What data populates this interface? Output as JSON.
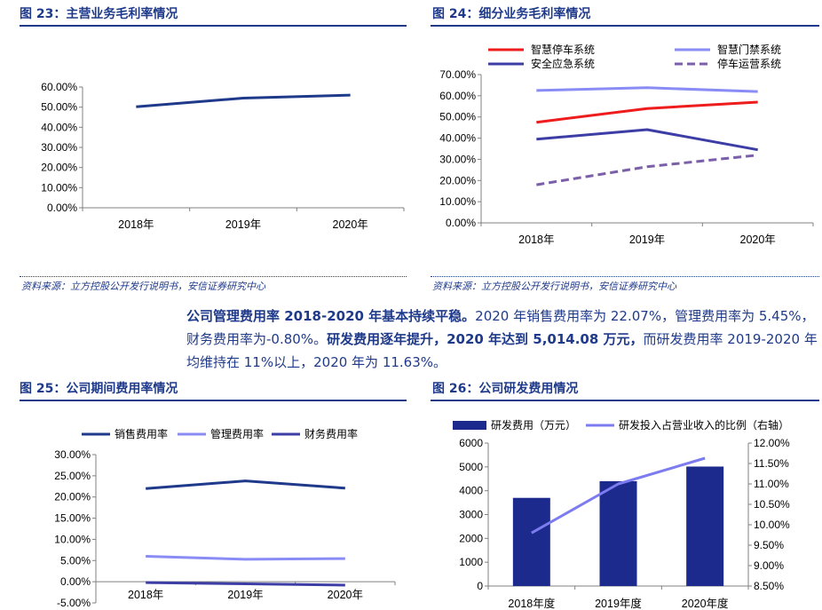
{
  "fig23": {
    "title": "图 23：主营业务毛利率情况",
    "source": "资料来源：立方控股公开发行说明书，安信证券研究中心"
  },
  "fig24": {
    "title": "图 24：细分业务毛利率情况",
    "source": "资料来源：立方控股公开发行说明书，安信证券研究中心"
  },
  "paragraph": {
    "bold1": "公司管理费用率 2018-2020 年基本持续平稳。",
    "text1": "2020 年销售费用率为 22.07%，管理费用率为 5.45%，财务费用率为-0.80%。",
    "bold2": "研发费用逐年提升，2020 年达到 5,014.08 万元，",
    "text2": "而研发费用率 2019-2020 年均维持在 11%以上，2020 年为 11.63%。"
  },
  "fig25": {
    "title": "图 25：公司期间费用率情况"
  },
  "fig26": {
    "title": "图 26：公司研发费用情况"
  },
  "colors": {
    "navy": "#1f3a8a",
    "red": "#ee1c1c",
    "light_blue": "#8a8cf5",
    "indigo": "#3d3da6",
    "dash_purple": "#7b5fa8",
    "bar": "#1b2a8c",
    "line_light": "#7c7cf0"
  },
  "chart_data": [
    {
      "id": "fig23",
      "type": "line",
      "categories": [
        "2018年",
        "2019年",
        "2020年"
      ],
      "series": [
        {
          "values": [
            50.2,
            54.5,
            56.0
          ]
        }
      ],
      "ylim": [
        0,
        60
      ],
      "yticks": [
        "0.00%",
        "10.00%",
        "20.00%",
        "30.00%",
        "40.00%",
        "50.00%",
        "60.00%"
      ],
      "grid": false
    },
    {
      "id": "fig24",
      "type": "line",
      "categories": [
        "2018年",
        "2019年",
        "2020年"
      ],
      "series": [
        {
          "name": "智慧停车系统",
          "values": [
            47.5,
            54.0,
            57.0
          ],
          "color": "#ee1c1c",
          "dash": false
        },
        {
          "name": "智慧门禁系统",
          "values": [
            62.5,
            63.8,
            62.0
          ],
          "color": "#8a8cf5",
          "dash": false
        },
        {
          "name": "安全应急系统",
          "values": [
            39.5,
            44.0,
            34.5
          ],
          "color": "#3d3da6",
          "dash": false
        },
        {
          "name": "停车运营系统",
          "values": [
            18.0,
            26.5,
            32.0
          ],
          "color": "#7b5fa8",
          "dash": true
        }
      ],
      "ylim": [
        0,
        70
      ],
      "yticks": [
        "0.00%",
        "10.00%",
        "20.00%",
        "30.00%",
        "40.00%",
        "50.00%",
        "60.00%",
        "70.00%"
      ],
      "legend": "top",
      "grid": false
    },
    {
      "id": "fig25",
      "type": "line",
      "categories": [
        "2018年",
        "2019年",
        "2020年"
      ],
      "series": [
        {
          "name": "销售费用率",
          "values": [
            22.0,
            23.8,
            22.07
          ],
          "color": "#1f3a8a"
        },
        {
          "name": "管理费用率",
          "values": [
            6.0,
            5.3,
            5.45
          ],
          "color": "#8a8cf5"
        },
        {
          "name": "财务费用率",
          "values": [
            -0.2,
            -0.5,
            -0.8
          ],
          "color": "#3d3da6"
        }
      ],
      "ylim": [
        -5,
        30
      ],
      "yticks": [
        "-5.00%",
        "0.00%",
        "5.00%",
        "10.00%",
        "15.00%",
        "20.00%",
        "25.00%",
        "30.00%"
      ],
      "legend": "top",
      "grid": false
    },
    {
      "id": "fig26",
      "type": "bar",
      "categories": [
        "2018年度",
        "2019年度",
        "2020年度"
      ],
      "series": [
        {
          "name": "研发费用（万元）",
          "values": [
            3700,
            4400,
            5014.08
          ],
          "axis": "left",
          "kind": "bar",
          "color": "#1b2a8c"
        },
        {
          "name": "研发投入占营业收入的比例（右轴）",
          "values": [
            9.8,
            11.0,
            11.63
          ],
          "axis": "right",
          "kind": "line",
          "color": "#7c7cf0"
        }
      ],
      "ylim_left": [
        0,
        6000
      ],
      "yticks_left": [
        "0",
        "1000",
        "2000",
        "3000",
        "4000",
        "5000",
        "6000"
      ],
      "ylim_right": [
        8.5,
        12
      ],
      "yticks_right": [
        "8.50%",
        "9.00%",
        "9.50%",
        "10.00%",
        "10.50%",
        "11.00%",
        "11.50%",
        "12.00%"
      ],
      "legend": "top",
      "grid": false
    }
  ]
}
